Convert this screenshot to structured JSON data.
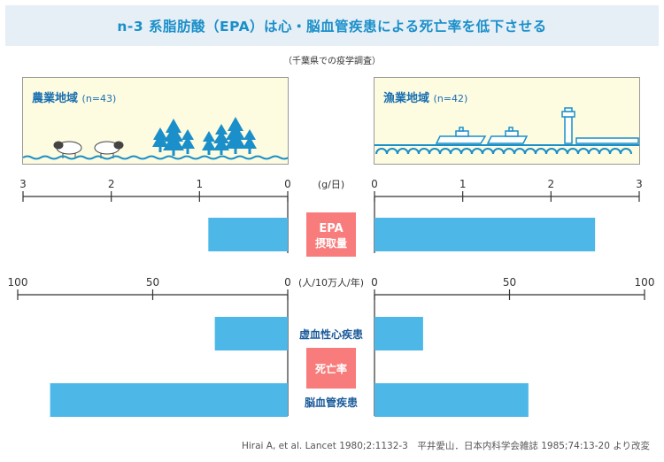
{
  "title": "n-3 系脂肪酸（EPA）は心・脳血管疾患による死亡率を低下させる",
  "subtitle": "（千葉県での疫学調査）",
  "scenes": {
    "left": {
      "label": "農業地域",
      "n": "(n=43)"
    },
    "right": {
      "label": "漁業地域",
      "n": "(n=42)"
    }
  },
  "colors": {
    "bar": "#4db8e8",
    "center_box": "#f87c7c",
    "title": "#1a8fc9",
    "scene_bg": "#fdfbe0",
    "wave": "#1a8fc9"
  },
  "chart_data": [
    {
      "type": "bar",
      "orientation": "horizontal-back-to-back",
      "unit": "(g/日)",
      "axis_left": {
        "ticks": [
          "3",
          "2",
          "1",
          "0"
        ],
        "range": [
          3,
          0
        ]
      },
      "axis_right": {
        "ticks": [
          "0",
          "1",
          "2",
          "3"
        ],
        "range": [
          0,
          3
        ]
      },
      "category_label": [
        "EPA",
        "摂取量"
      ],
      "series": [
        {
          "name": "農業地域",
          "side": "left",
          "values": [
            0.9
          ]
        },
        {
          "name": "漁業地域",
          "side": "right",
          "values": [
            2.5
          ]
        }
      ]
    },
    {
      "type": "bar",
      "orientation": "horizontal-back-to-back",
      "unit": "(人/10万人/年)",
      "axis_left": {
        "ticks": [
          "100",
          "50",
          "0"
        ],
        "range": [
          100,
          0
        ]
      },
      "axis_right": {
        "ticks": [
          "0",
          "50",
          "100"
        ],
        "range": [
          0,
          100
        ]
      },
      "center_label": "死亡率",
      "categories": [
        "虚血性心疾患",
        "脳血管疾患"
      ],
      "series": [
        {
          "name": "農業地域",
          "side": "left",
          "values": [
            27,
            88
          ]
        },
        {
          "name": "漁業地域",
          "side": "right",
          "values": [
            18,
            57
          ]
        }
      ]
    }
  ],
  "source": "Hirai A, et al. Lancet 1980;2:1132-3　平井愛山．日本内科学会雑誌 1985;74:13-20 より改変"
}
